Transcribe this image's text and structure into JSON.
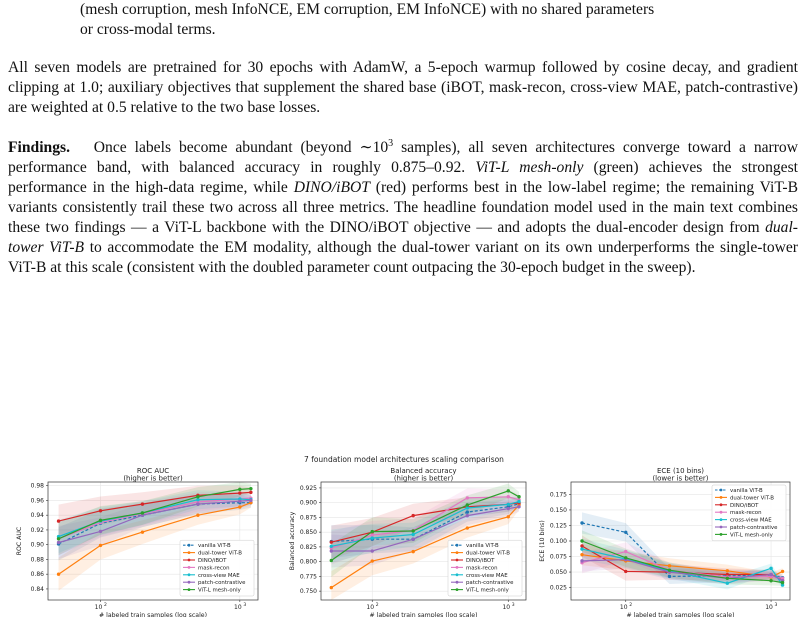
{
  "page": {
    "top_cont_line1": "(mesh corruption, mesh InfoNCE, EM corruption, EM InfoNCE) with no shared parameters",
    "top_cont_line2": "or cross-modal terms.",
    "p1_lines": [
      "All seven models are pretrained for 30 epochs with AdamW, a 5-epoch warmup followed by cosine",
      "decay, and gradient clipping at 1.0; auxiliary objectives that supplement the shared base (iBOT,",
      "mask-recon, cross-view MAE, patch-contrastive) are weighted at 0.5 relative to the two base losses."
    ],
    "findings_label": "Findings.",
    "p2_line1_a": "Once labels become abundant (beyond ∼10",
    "p2_line1_sup": "3",
    "p2_line1_b": " samples), all seven architectures converge",
    "p2_line2": "toward a narrow performance band, with balanced accuracy in roughly 0.875–0.92.",
    "p2_line2_it": "ViT-L mesh-only",
    "p2_line3_a": "(green) achieves the strongest performance in the high-data regime, while",
    "p2_line3_it": "DINO/iBOT",
    "p2_line3_b": "(red) performs",
    "p2_rest_lines": [
      "best in the low-label regime; the remaining ViT-B variants consistently trail these two across all three",
      "metrics. The headline foundation model used in the main text combines these two findings — a ViT-L",
      "backbone with the DINO/iBOT objective — and adopts the dual-encoder design from"
    ],
    "p2_line6_it": "dual-tower",
    "p2_line7_it": "ViT-B",
    "p2_line7_b": "to accommodate the EM modality, although the dual-tower variant on its own underperforms",
    "p2_line8": "the single-tower ViT-B at this scale (consistent with the doubled parameter count outpacing the",
    "p2_line9": "30-epoch budget in the sweep)."
  },
  "chart_data": [
    {
      "type": "line",
      "suptitle": "7 foundation model architectures scaling comparison",
      "title": "ROC AUC\n(higher is better)",
      "xlabel": "# labeled train samples (log scale)",
      "ylabel": "ROC AUC",
      "xscale": "log",
      "xlim": [
        42,
        1350
      ],
      "ylim": [
        0.825,
        0.985
      ],
      "yticks": [
        0.84,
        0.86,
        0.88,
        0.9,
        0.92,
        0.94,
        0.96,
        0.98
      ],
      "xticks": [
        100,
        1000
      ],
      "x": [
        50,
        100,
        200,
        500,
        1000,
        1200
      ],
      "legend_loc": "lower-right",
      "series": [
        {
          "name": "vanilla ViT-B",
          "color": "#1f77b4",
          "dashed": true,
          "values": [
            0.901,
            0.929,
            0.94,
            0.955,
            0.957,
            0.957
          ]
        },
        {
          "name": "dual-tower ViT-B",
          "color": "#ff7f0e",
          "dashed": false,
          "values": [
            0.86,
            0.899,
            0.917,
            0.94,
            0.951,
            0.957
          ]
        },
        {
          "name": "DINO/iBOT",
          "color": "#d62728",
          "dashed": false,
          "values": [
            0.932,
            0.946,
            0.955,
            0.967,
            0.97,
            0.971
          ]
        },
        {
          "name": "mask-recon",
          "color": "#e377c2",
          "dashed": false,
          "values": [
            0.908,
            0.93,
            0.942,
            0.958,
            0.962,
            0.963
          ]
        },
        {
          "name": "cross-view MAE",
          "color": "#17becf",
          "dashed": false,
          "values": [
            0.911,
            0.932,
            0.943,
            0.961,
            0.962,
            0.961
          ]
        },
        {
          "name": "patch-contrastive",
          "color": "#9467bd",
          "dashed": false,
          "values": [
            0.903,
            0.918,
            0.94,
            0.955,
            0.959,
            0.96
          ]
        },
        {
          "name": "ViT-L mesh-only",
          "color": "#2ca02c",
          "dashed": false,
          "values": [
            0.908,
            0.933,
            0.943,
            0.965,
            0.975,
            0.976
          ]
        }
      ]
    },
    {
      "type": "line",
      "title": "Balanced accuracy\n(higher is better)",
      "xlabel": "# labeled train samples (log scale)",
      "ylabel": "Balanced accuracy",
      "xscale": "log",
      "xlim": [
        42,
        1350
      ],
      "ylim": [
        0.735,
        0.935
      ],
      "yticks": [
        0.75,
        0.775,
        0.8,
        0.825,
        0.85,
        0.875,
        0.9,
        0.925
      ],
      "xticks": [
        100,
        1000
      ],
      "x": [
        50,
        100,
        200,
        500,
        1000,
        1200
      ],
      "legend_loc": "lower-right",
      "series": [
        {
          "name": "vanilla ViT-B",
          "color": "#1f77b4",
          "dashed": true,
          "values": [
            0.834,
            0.838,
            0.838,
            0.884,
            0.893,
            0.898
          ]
        },
        {
          "name": "dual-tower ViT-B",
          "color": "#ff7f0e",
          "dashed": false,
          "values": [
            0.756,
            0.801,
            0.817,
            0.857,
            0.876,
            0.896
          ]
        },
        {
          "name": "DINO/iBOT",
          "color": "#d62728",
          "dashed": false,
          "values": [
            0.833,
            0.85,
            0.878,
            0.893,
            0.897,
            0.9
          ]
        },
        {
          "name": "mask-recon",
          "color": "#e377c2",
          "dashed": false,
          "values": [
            0.823,
            0.845,
            0.853,
            0.908,
            0.91,
            0.905
          ]
        },
        {
          "name": "cross-view MAE",
          "color": "#17becf",
          "dashed": false,
          "values": [
            0.826,
            0.84,
            0.846,
            0.891,
            0.897,
            0.902
          ]
        },
        {
          "name": "patch-contrastive",
          "color": "#9467bd",
          "dashed": false,
          "values": [
            0.818,
            0.818,
            0.838,
            0.878,
            0.89,
            0.893
          ]
        },
        {
          "name": "ViT-L mesh-only",
          "color": "#2ca02c",
          "dashed": false,
          "values": [
            0.802,
            0.851,
            0.852,
            0.896,
            0.92,
            0.91
          ]
        }
      ]
    },
    {
      "type": "line",
      "title": "ECE (10 bins)\n(lower is better)",
      "xlabel": "# labeled train samples (log scale)",
      "ylabel": "ECE (10 bins)",
      "xscale": "log",
      "xlim": [
        42,
        1350
      ],
      "ylim": [
        0.005,
        0.195
      ],
      "yticks": [
        0.025,
        0.05,
        0.075,
        0.1,
        0.125,
        0.15,
        0.175
      ],
      "xticks": [
        100,
        1000
      ],
      "x": [
        50,
        100,
        200,
        500,
        1000,
        1200
      ],
      "legend_loc": "upper-right",
      "series": [
        {
          "name": "vanilla ViT-B",
          "color": "#1f77b4",
          "dashed": true,
          "values": [
            0.129,
            0.114,
            0.043,
            0.044,
            0.045,
            0.041
          ]
        },
        {
          "name": "dual-tower ViT-B",
          "color": "#ff7f0e",
          "dashed": false,
          "values": [
            0.078,
            0.068,
            0.06,
            0.052,
            0.042,
            0.051
          ]
        },
        {
          "name": "DINO/iBOT",
          "color": "#d62728",
          "dashed": false,
          "values": [
            0.092,
            0.051,
            0.05,
            0.046,
            0.046,
            0.037
          ]
        },
        {
          "name": "mask-recon",
          "color": "#e377c2",
          "dashed": false,
          "values": [
            0.065,
            0.083,
            0.053,
            0.042,
            0.043,
            0.04
          ]
        },
        {
          "name": "cross-view MAE",
          "color": "#17becf",
          "dashed": false,
          "values": [
            0.087,
            0.071,
            0.052,
            0.032,
            0.056,
            0.029
          ]
        },
        {
          "name": "patch-contrastive",
          "color": "#9467bd",
          "dashed": false,
          "values": [
            0.068,
            0.07,
            0.05,
            0.04,
            0.046,
            0.036
          ]
        },
        {
          "name": "ViT-L mesh-only",
          "color": "#2ca02c",
          "dashed": false,
          "values": [
            0.1,
            0.073,
            0.053,
            0.04,
            0.036,
            0.033
          ]
        }
      ]
    }
  ]
}
